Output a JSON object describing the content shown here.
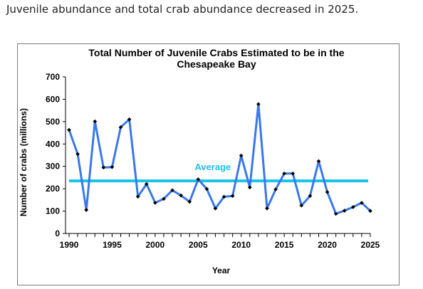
{
  "caption": "Juvenile abundance and total crab abundance decreased in 2025.",
  "chart_data": {
    "type": "line",
    "title_line1": "Total Number of Juvenile Crabs Estimated to be in the",
    "title_line2": "Chesapeake Bay",
    "xlabel": "Year",
    "ylabel": "Number of crabs (millions)",
    "xlim": [
      1990,
      2025
    ],
    "ylim": [
      0,
      700
    ],
    "y_ticks": [
      0,
      100,
      200,
      300,
      400,
      500,
      600,
      700
    ],
    "x_ticks": [
      1990,
      1995,
      2000,
      2005,
      2010,
      2015,
      2020,
      2025
    ],
    "grid": false,
    "series": [
      {
        "x": [
          1990,
          1991,
          1992,
          1993,
          1994,
          1995,
          1996,
          1997,
          1998,
          1999,
          2000,
          2001,
          2002,
          2003,
          2004,
          2005,
          2006,
          2007,
          2008,
          2009,
          2010,
          2011,
          2012,
          2013,
          2014,
          2015,
          2016,
          2017,
          2018,
          2019,
          2020,
          2021,
          2022,
          2023,
          2024,
          2025
        ],
        "values": [
          463,
          355,
          105,
          501,
          295,
          297,
          475,
          510,
          165,
          221,
          137,
          155,
          193,
          170,
          142,
          242,
          199,
          112,
          164,
          168,
          348,
          206,
          578,
          112,
          197,
          268,
          268,
          125,
          168,
          323,
          185,
          88,
          102,
          118,
          137,
          101
        ],
        "color": "#3a78e8",
        "marker_color": "#000000"
      }
    ],
    "reference_line": {
      "label": "Average",
      "value": 235,
      "color": "#19c3ea"
    }
  }
}
